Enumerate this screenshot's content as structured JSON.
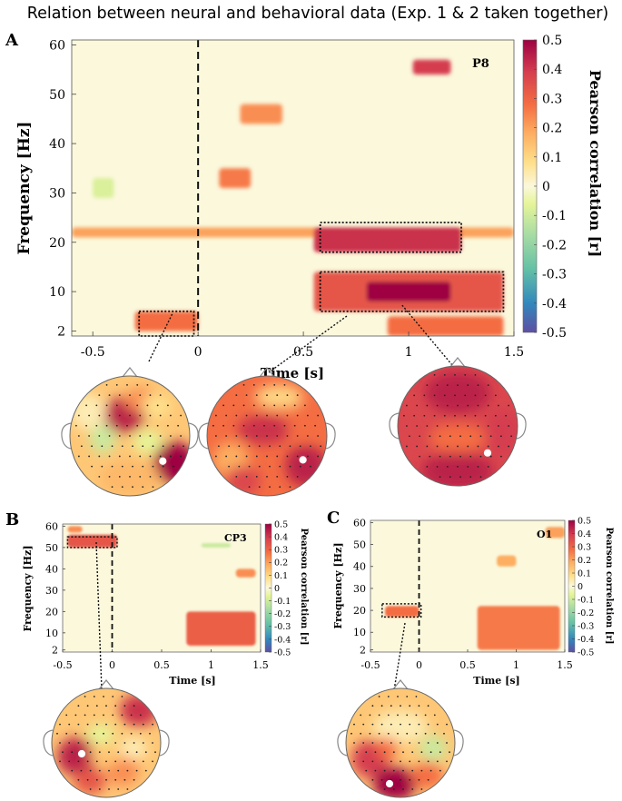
{
  "figure": {
    "title": "Relation between neural and behavioral data (Exp. 1 & 2 taken together)",
    "colorbar": {
      "label": "Pearson correlation [r]",
      "range": [
        -0.5,
        0.5
      ],
      "ticks": [
        "0.5",
        "0.4",
        "0.3",
        "0.2",
        "0.1",
        "0",
        "-0.1",
        "-0.2",
        "-0.3",
        "-0.4",
        "-0.5"
      ],
      "colors": [
        "#5e4fa2",
        "#3288bd",
        "#66c2a5",
        "#abdda4",
        "#e6f598",
        "#fbf8dc",
        "#fee08b",
        "#fdae61",
        "#f46d43",
        "#d53e4f",
        "#9e0142"
      ]
    }
  },
  "chart_data": [
    {
      "type": "heatmap",
      "panel": "A",
      "channel": "P8",
      "xlabel": "Time  [s]",
      "ylabel": "Frequency [Hz]",
      "xlim": [
        -0.6,
        1.5
      ],
      "ylim": [
        1,
        61
      ],
      "xticks": [
        -0.5,
        0,
        0.5,
        1,
        1.5
      ],
      "xtick_labels": [
        "-0.5",
        "0",
        "0.5",
        "1",
        "1.5"
      ],
      "yticks": [
        2,
        10,
        20,
        30,
        40,
        50,
        60
      ],
      "ytick_labels": [
        "2",
        "10",
        "20",
        "30",
        "40",
        "50",
        "60"
      ],
      "onset_line": 0,
      "clusters": [
        {
          "t": [
            -0.6,
            1.5
          ],
          "f": [
            21,
            23
          ],
          "r": 0.22,
          "label": "20 Hz band"
        },
        {
          "t": [
            0.55,
            1.25
          ],
          "f": [
            18,
            23
          ],
          "r": 0.42
        },
        {
          "t": [
            0.55,
            1.45
          ],
          "f": [
            6,
            14
          ],
          "r": 0.35
        },
        {
          "t": [
            0.8,
            1.2
          ],
          "f": [
            8,
            12
          ],
          "r": 0.5
        },
        {
          "t": [
            -0.3,
            0.0
          ],
          "f": [
            2,
            6
          ],
          "r": 0.3
        },
        {
          "t": [
            0.9,
            1.45
          ],
          "f": [
            1,
            5
          ],
          "r": 0.3
        },
        {
          "t": [
            1.02,
            1.2
          ],
          "f": [
            54,
            57
          ],
          "r": 0.4
        },
        {
          "t": [
            0.2,
            0.4
          ],
          "f": [
            44,
            48
          ],
          "r": 0.25
        },
        {
          "t": [
            0.1,
            0.25
          ],
          "f": [
            31,
            35
          ],
          "r": 0.28
        },
        {
          "t": [
            -0.5,
            -0.4
          ],
          "f": [
            29,
            33
          ],
          "r": -0.12
        }
      ],
      "highlight_boxes": [
        {
          "t": [
            -0.28,
            -0.02
          ],
          "f": [
            1,
            6
          ]
        },
        {
          "t": [
            0.58,
            1.25
          ],
          "f": [
            18,
            24
          ]
        },
        {
          "t": [
            0.58,
            1.45
          ],
          "f": [
            6,
            14
          ]
        }
      ],
      "topomaps": [
        {
          "electrode_marker": "white dot",
          "mean_r": 0.2
        },
        {
          "electrode_marker": "white dot",
          "mean_r": 0.3
        },
        {
          "electrode_marker": "white dot",
          "mean_r": 0.4
        }
      ]
    },
    {
      "type": "heatmap",
      "panel": "B",
      "channel": "CP3",
      "xlabel": "Time  [s]",
      "ylabel": "Frequency [Hz]",
      "xlim": [
        -0.5,
        1.5
      ],
      "ylim": [
        1,
        61
      ],
      "xticks": [
        -0.5,
        0,
        0.5,
        1,
        1.5
      ],
      "xtick_labels": [
        "-0.5",
        "0",
        "0.5",
        "1",
        "1.5"
      ],
      "yticks": [
        2,
        10,
        20,
        30,
        40,
        50,
        60
      ],
      "ytick_labels": [
        "2",
        "10",
        "20",
        "30",
        "40",
        "50",
        "60"
      ],
      "onset_line": 0,
      "clusters": [
        {
          "t": [
            -0.45,
            0.05
          ],
          "f": [
            50,
            56
          ],
          "r": 0.35
        },
        {
          "t": [
            -0.45,
            -0.3
          ],
          "f": [
            57,
            60
          ],
          "r": 0.25
        },
        {
          "t": [
            0.75,
            1.45
          ],
          "f": [
            4,
            20
          ],
          "r": 0.33
        },
        {
          "t": [
            1.25,
            1.45
          ],
          "f": [
            36,
            40
          ],
          "r": 0.25
        },
        {
          "t": [
            0.9,
            1.2
          ],
          "f": [
            50,
            52
          ],
          "r": -0.15
        }
      ],
      "highlight_boxes": [
        {
          "t": [
            -0.45,
            0.05
          ],
          "f": [
            50,
            55
          ]
        }
      ],
      "topomaps": [
        {
          "electrode_marker": "white dot",
          "mean_r": 0.15
        }
      ]
    },
    {
      "type": "heatmap",
      "panel": "C",
      "channel": "O1",
      "xlabel": "Time  [s]",
      "ylabel": "Frequency [Hz]",
      "xlim": [
        -0.5,
        1.5
      ],
      "ylim": [
        1,
        61
      ],
      "xticks": [
        -0.5,
        0,
        0.5,
        1,
        1.5
      ],
      "xtick_labels": [
        "-0.5",
        "0",
        "0.5",
        "1",
        "1.5"
      ],
      "yticks": [
        2,
        10,
        20,
        30,
        40,
        50,
        60
      ],
      "ytick_labels": [
        "2",
        "10",
        "20",
        "30",
        "40",
        "50",
        "60"
      ],
      "onset_line": 0,
      "clusters": [
        {
          "t": [
            -0.35,
            0.0
          ],
          "f": [
            17,
            22
          ],
          "r": 0.3
        },
        {
          "t": [
            0.6,
            1.45
          ],
          "f": [
            2,
            22
          ],
          "r": 0.28
        },
        {
          "t": [
            0.8,
            1.0
          ],
          "f": [
            40,
            45
          ],
          "r": 0.2
        },
        {
          "t": [
            1.3,
            1.5
          ],
          "f": [
            53,
            58
          ],
          "r": 0.22
        }
      ],
      "highlight_boxes": [
        {
          "t": [
            -0.38,
            0.02
          ],
          "f": [
            17,
            23
          ]
        }
      ],
      "topomaps": [
        {
          "electrode_marker": "white dot",
          "mean_r": 0.15
        }
      ]
    }
  ]
}
